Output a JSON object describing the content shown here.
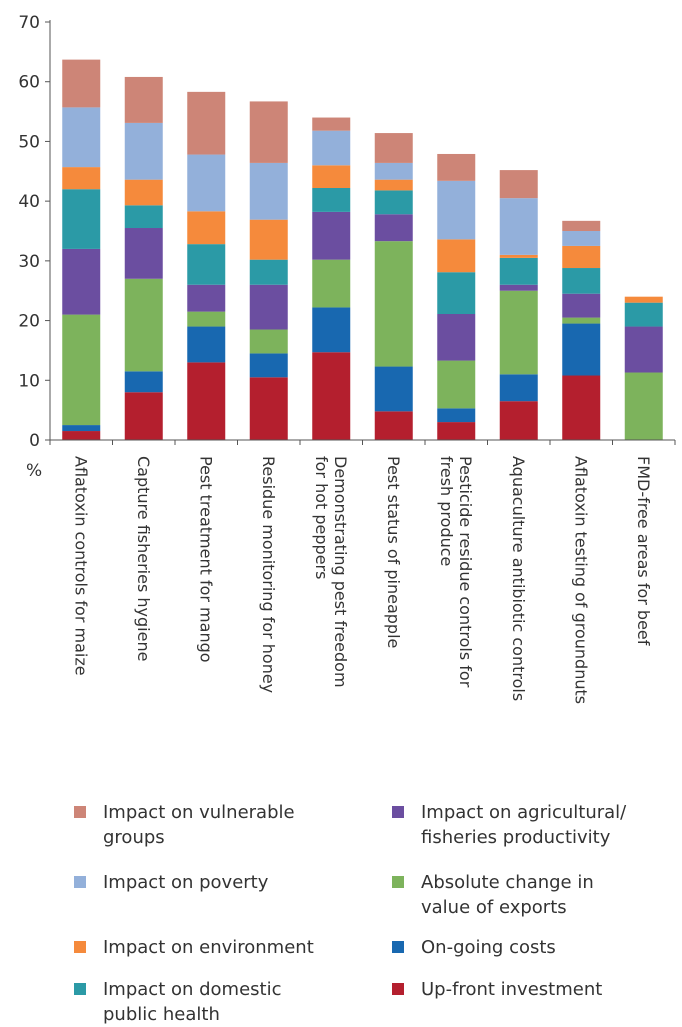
{
  "chart_data": {
    "type": "bar",
    "stacked": true,
    "orientation": "vertical",
    "title": "",
    "xlabel": "",
    "ylabel": "%",
    "ylim": [
      0,
      70
    ],
    "yticks": [
      0,
      10,
      20,
      30,
      40,
      50,
      60,
      70
    ],
    "grid": false,
    "legend_position": "bottom",
    "categories": [
      "Aflatoxin controls for maize",
      "Capture fisheries hygiene",
      "Pest treatment for mango",
      "Residue monitoring for honey",
      "Demonstrating pest freedom\nfor hot peppers",
      "Pest status of pineapple",
      "Pesticide residue controls for\nfresh produce",
      "Aquaculture antibiotic controls",
      "Aflatoxin testing of groundnuts",
      "FMD-free areas for beef"
    ],
    "series": [
      {
        "name": "Up-front investment",
        "color": "#b41f2e",
        "values": [
          1.5,
          8,
          13,
          10.5,
          14.7,
          4.8,
          3,
          6.5,
          10.8,
          0
        ]
      },
      {
        "name": "On-going costs",
        "color": "#1868b0",
        "values": [
          1,
          3.5,
          6,
          4,
          7.5,
          7.5,
          2.3,
          4.5,
          8.7,
          0
        ]
      },
      {
        "name": "Absolute change in\nvalue of exports",
        "color": "#7db35c",
        "values": [
          18.5,
          15.5,
          2.5,
          4,
          8,
          21,
          8,
          14,
          1,
          11.3
        ]
      },
      {
        "name": "Impact on agricultural/\nfisheries productivity",
        "color": "#6b4ea0",
        "values": [
          11,
          8.5,
          4.5,
          7.5,
          8,
          4.5,
          7.8,
          1,
          4,
          7.7
        ]
      },
      {
        "name": "Impact on domestic\npublic health",
        "color": "#2b9aa6",
        "values": [
          10,
          3.8,
          6.8,
          4.2,
          4,
          4,
          7,
          4.5,
          4.3,
          4
        ]
      },
      {
        "name": "Impact on environment",
        "color": "#f58a3c",
        "values": [
          3.7,
          4.3,
          5.5,
          6.7,
          3.8,
          1.8,
          5.5,
          0.5,
          3.7,
          1
        ]
      },
      {
        "name": "Impact on poverty",
        "color": "#93b0da",
        "values": [
          10,
          9.5,
          9.5,
          9.5,
          5.8,
          2.8,
          9.8,
          9.5,
          2.5,
          0
        ]
      },
      {
        "name": "Impact on vulnerable\ngroups",
        "color": "#cd8577",
        "values": [
          8,
          7.7,
          10.5,
          10.3,
          2.2,
          5,
          4.5,
          4.7,
          1.7,
          0
        ]
      }
    ],
    "legend_order": [
      7,
      3,
      6,
      2,
      5,
      1,
      4,
      0
    ]
  }
}
